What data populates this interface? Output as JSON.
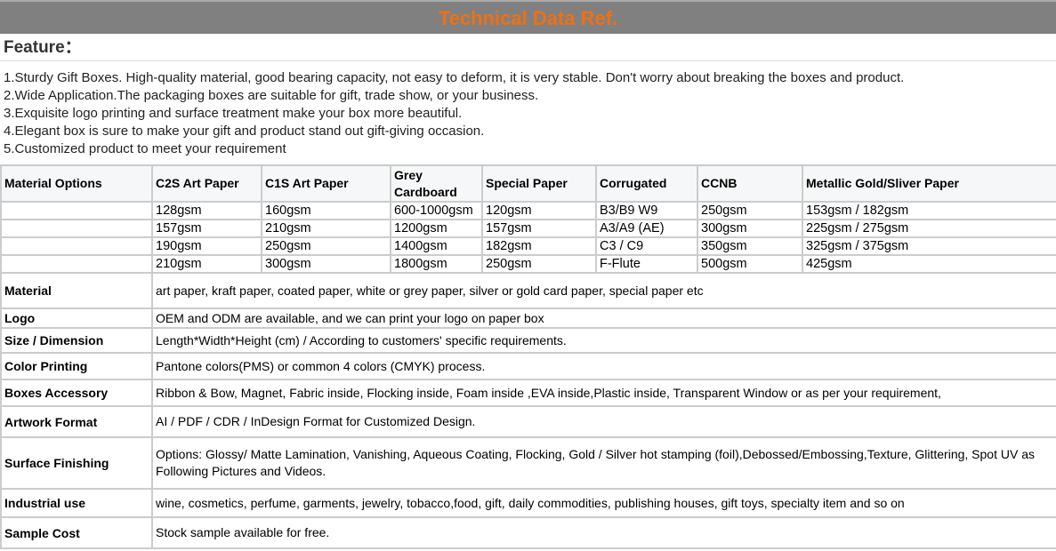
{
  "title": "Technical Data Ref.",
  "feature_heading": "Feature：",
  "features": [
    "1.Sturdy Gift Boxes. High-quality material, good bearing capacity, not easy to deform, it is very stable. Don't worry about breaking the boxes and product.",
    "2.Wide Application.The packaging boxes are suitable for gift, trade show, or your business.",
    "3.Exquisite logo printing and surface treatment make your box more beautiful.",
    "4.Elegant box is sure to make your gift and product stand out gift-giving occasion.",
    "5.Customized product to meet your requirement"
  ],
  "material_options": {
    "headers": [
      "Material Options",
      "C2S Art Paper",
      "C1S Art Paper",
      "Grey Cardboard",
      "Special Paper",
      "Corrugated",
      "CCNB",
      "Metallic Gold/Sliver Paper"
    ],
    "rows": [
      [
        "",
        "128gsm",
        "160gsm",
        "600-1000gsm",
        "120gsm",
        "B3/B9 W9",
        "250gsm",
        "153gsm / 182gsm"
      ],
      [
        "",
        "157gsm",
        "210gsm",
        "1200gsm",
        "157gsm",
        "A3/A9 (AE)",
        "300gsm",
        "225gsm / 275gsm"
      ],
      [
        "",
        "190gsm",
        "250gsm",
        "1400gsm",
        "182gsm",
        "C3 / C9",
        "350gsm",
        "325gsm / 375gsm"
      ],
      [
        "",
        "210gsm",
        "300gsm",
        "1800gsm",
        "250gsm",
        "F-Flute",
        "500gsm",
        "425gsm"
      ]
    ]
  },
  "specs": [
    {
      "label": "Material",
      "value": "art paper, kraft paper, coated paper, white or grey paper, silver or gold card paper, special paper etc"
    },
    {
      "label": "Logo",
      "value": "OEM and ODM are available, and we can print your logo on paper box"
    },
    {
      "label": "Size / Dimension",
      "value": "Length*Width*Height (cm) / According to customers' specific requirements."
    },
    {
      "label": "Color Printing",
      "value": "Pantone colors(PMS) or common 4 colors (CMYK) process."
    },
    {
      "label": "Boxes Accessory",
      "value": "Ribbon & Bow, Magnet, Fabric inside, Flocking inside, Foam inside ,EVA inside,Plastic inside, Transparent Window or as per your requirement,"
    },
    {
      "label": "Artwork Format",
      "value": "AI / PDF / CDR / InDesign Format for Customized Design."
    },
    {
      "label": "Surface Finishing",
      "value": "Options: Glossy/ Matte Lamination, Vanishing, Aqueous Coating, Flocking, Gold / Silver hot stamping (foil),Debossed/Embossing,Texture, Glittering, Spot UV as Following Pictures and Videos."
    },
    {
      "label": "Industrial use",
      "value": "wine, cosmetics, perfume, garments, jewelry, tobacco,food, gift, daily commodities, publishing houses, gift toys, specialty item and so on"
    },
    {
      "label": "Sample Cost",
      "value": "Stock sample available for free."
    }
  ]
}
